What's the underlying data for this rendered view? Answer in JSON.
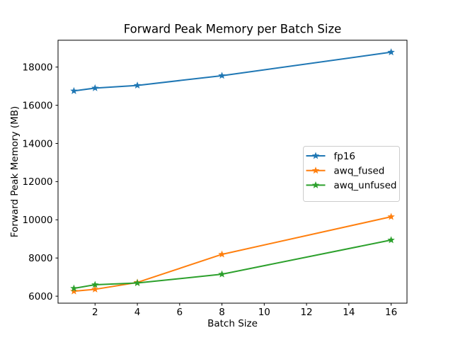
{
  "chart_data": {
    "type": "line",
    "title": "Forward Peak Memory per Batch Size",
    "xlabel": "Batch Size",
    "ylabel": "Forward Peak Memory (MB)",
    "x": [
      1,
      2,
      4,
      8,
      16
    ],
    "series": [
      {
        "name": "fp16",
        "color": "#1f77b4",
        "values": [
          16750,
          16900,
          17040,
          17550,
          18780
        ]
      },
      {
        "name": "awq_fused",
        "color": "#ff7f0e",
        "values": [
          6260,
          6360,
          6720,
          8190,
          10160
        ]
      },
      {
        "name": "awq_unfused",
        "color": "#2ca02c",
        "values": [
          6410,
          6600,
          6690,
          7150,
          8940
        ]
      }
    ],
    "xticks": [
      2,
      4,
      6,
      8,
      10,
      12,
      14,
      16
    ],
    "yticks": [
      6000,
      8000,
      10000,
      12000,
      14000,
      16000,
      18000
    ],
    "xlim": [
      0.25,
      16.75
    ],
    "ylim": [
      5634,
      19406
    ],
    "marker": "star",
    "grid": false,
    "line_width": 2,
    "legend": {
      "position": "center-right",
      "entries": [
        "fp16",
        "awq_fused",
        "awq_unfused"
      ]
    },
    "colors": {
      "spine": "#000000",
      "background": "#ffffff",
      "legend_edge": "#cccccc"
    }
  }
}
